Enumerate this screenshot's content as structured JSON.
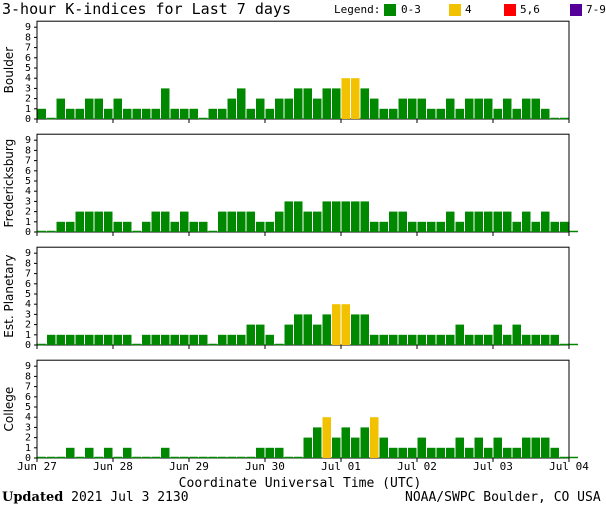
{
  "header": {
    "title": "3-hour K-indices for Last 7 days",
    "legend_label": "Legend:",
    "legend": [
      {
        "label": "0-3",
        "color": "#008800"
      },
      {
        "label": "4",
        "color": "#f2c200"
      },
      {
        "label": "5,6",
        "color": "#ff0000"
      },
      {
        "label": "7-9",
        "color": "#550099"
      }
    ]
  },
  "chart_data": {
    "type": "bar",
    "title": "3-hour K-indices for Last 7 days",
    "xlabel": "Coordinate Universal Time (UTC)",
    "ylim": [
      0,
      9
    ],
    "yticks": [
      "0",
      "1",
      "2",
      "3",
      "4",
      "5",
      "6",
      "7",
      "8",
      "9"
    ],
    "xticks": [
      "Jun 27",
      "Jun 28",
      "Jun 29",
      "Jun 30",
      "Jul 01",
      "Jul 02",
      "Jul 03",
      "Jul 04"
    ],
    "color_scale": [
      {
        "range": "0-3",
        "color": "#008800"
      },
      {
        "range": "4",
        "color": "#f2c200"
      },
      {
        "range": "5,6",
        "color": "#ff0000"
      },
      {
        "range": "7-9",
        "color": "#550099"
      }
    ],
    "panels": [
      {
        "name": "Boulder",
        "values": [
          1,
          0,
          2,
          1,
          1,
          2,
          2,
          1,
          2,
          1,
          1,
          1,
          1,
          3,
          1,
          1,
          1,
          0,
          1,
          1,
          2,
          3,
          1,
          2,
          1,
          2,
          2,
          3,
          3,
          2,
          3,
          3,
          4,
          4,
          3,
          2,
          1,
          1,
          2,
          2,
          2,
          1,
          1,
          2,
          1,
          2,
          2,
          2,
          1,
          2,
          1,
          2,
          2,
          1,
          0,
          0
        ]
      },
      {
        "name": "Fredericksburg",
        "values": [
          0,
          0,
          1,
          1,
          2,
          2,
          2,
          2,
          1,
          1,
          0,
          1,
          2,
          2,
          1,
          2,
          1,
          1,
          0,
          2,
          2,
          2,
          2,
          1,
          1,
          2,
          3,
          3,
          2,
          2,
          3,
          3,
          3,
          3,
          3,
          1,
          1,
          2,
          2,
          1,
          1,
          1,
          1,
          2,
          1,
          2,
          2,
          2,
          2,
          2,
          1,
          2,
          1,
          2,
          1,
          1,
          0
        ]
      },
      {
        "name": "Est. Planetary",
        "values": [
          0,
          1,
          1,
          1,
          1,
          1,
          1,
          1,
          1,
          1,
          0,
          1,
          1,
          1,
          1,
          1,
          1,
          1,
          0,
          1,
          1,
          1,
          2,
          2,
          1,
          0,
          2,
          3,
          3,
          2,
          3,
          4,
          4,
          3,
          3,
          1,
          1,
          1,
          1,
          1,
          1,
          1,
          1,
          1,
          2,
          1,
          1,
          1,
          2,
          1,
          2,
          1,
          1,
          1,
          1,
          0,
          0
        ]
      },
      {
        "name": "College",
        "values": [
          0,
          0,
          0,
          1,
          0,
          1,
          0,
          1,
          0,
          1,
          0,
          0,
          0,
          1,
          0,
          0,
          0,
          0,
          0,
          0,
          0,
          0,
          0,
          1,
          1,
          1,
          0,
          0,
          2,
          3,
          4,
          2,
          3,
          2,
          3,
          4,
          2,
          1,
          1,
          1,
          2,
          1,
          1,
          1,
          2,
          1,
          2,
          1,
          2,
          1,
          1,
          2,
          2,
          2,
          1,
          0,
          0
        ]
      }
    ]
  },
  "footer": {
    "updated_label": "Updated",
    "updated_time": "2021 Jul  3 2130",
    "source": "NOAA/SWPC Boulder, CO USA"
  }
}
